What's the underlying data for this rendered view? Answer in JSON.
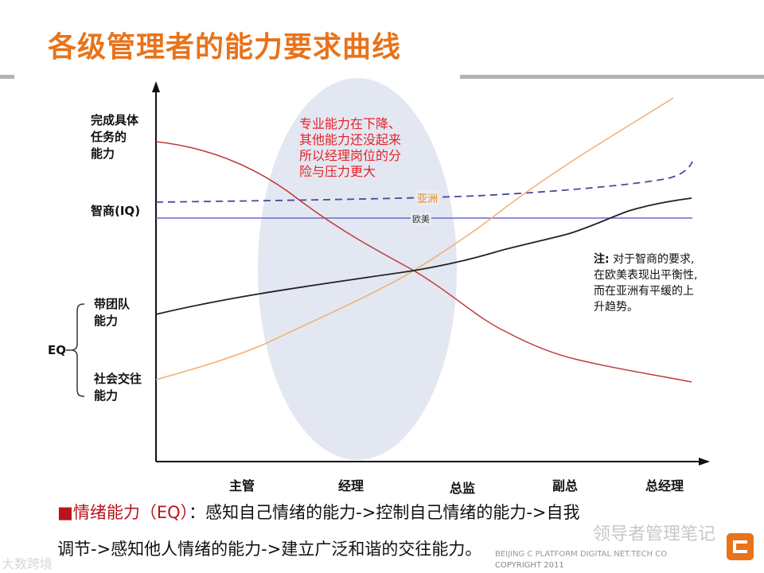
{
  "title": "各级管理者的能力要求曲线",
  "y_labels": {
    "task": "完成具体任务的能力",
    "task_lines": [
      "完成具体",
      "任务的",
      "能力"
    ],
    "iq": "智商(IQ)",
    "team_lines": [
      "带团队",
      "能力"
    ],
    "social_lines": [
      "社会交往",
      "能力"
    ],
    "eq": "EQ"
  },
  "x_labels": [
    "主管",
    "经理",
    "总监",
    "副总",
    "总经理"
  ],
  "line_labels": {
    "asia": "亚洲",
    "west": "欧美"
  },
  "callout_lines": [
    "专业能力在下降、",
    "其他能力还没起来",
    "所以经理岗位的分",
    "险与压力更大"
  ],
  "note": {
    "prefix": "注:",
    "lines": [
      "对于智商的要求,",
      "在欧美表现出平衡性,",
      "而在亚洲有平缓的上",
      "升趋势。"
    ]
  },
  "bottom": {
    "bullet": "■",
    "heading": "情绪能力（EQ）",
    "colon": "：",
    "line1_rest": "感知自己情绪的能力->控制自己情绪的能力->自我",
    "line2": "调节->感知他人情绪的能力->建立广泛和谐的交往能力。"
  },
  "footer": {
    "platform": "BEIJING C PLATFORM DIGITAL NET.TECH CO",
    "copyright": "COPYRIGHT  2011"
  },
  "watermarks": {
    "right": "领导者管理笔记",
    "left": "大数跨境"
  },
  "colors": {
    "title": "#e8731a",
    "task_curve": "#c0393b",
    "social_curve": "#f0b070",
    "team_curve": "#222222",
    "iq_asia": "#4a4aa0",
    "iq_west": "#6a6ad0",
    "ellipse": "#e3e7f1",
    "callout": "#e3232c"
  }
}
